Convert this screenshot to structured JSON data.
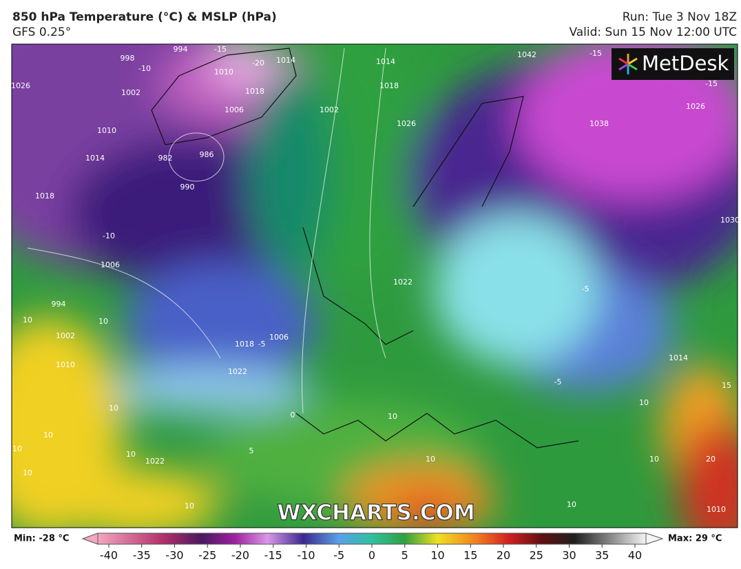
{
  "header": {
    "title": "850 hPa Temperature (°C) & MSLP (hPa)",
    "subtitle": "GFS 0.25°",
    "run": "Run: Tue 3 Nov 18Z",
    "valid": "Valid: Sun 15 Nov 12:00 UTC"
  },
  "logo": "MetDesk",
  "watermark": "WXCHARTS.COM",
  "map": {
    "contour_labels": [
      "994",
      "998",
      "1002",
      "1010",
      "1014",
      "1018",
      "1026",
      "982",
      "986",
      "990",
      "1010",
      "1018",
      "1014",
      "1006",
      "1002",
      "1014",
      "1018",
      "1026",
      "1022",
      "1042",
      "1038",
      "1026",
      "1030",
      "1006",
      "994",
      "1002",
      "1010",
      "1018",
      "1022",
      "1006",
      "1014",
      "1010",
      "1022",
      "-15",
      "-20",
      "-10",
      "-15",
      "-15",
      "-10",
      "-5",
      "-5",
      "-5",
      "0",
      "5",
      "10",
      "10",
      "10",
      "10",
      "10",
      "10",
      "10",
      "10",
      "10",
      "10",
      "10",
      "10",
      "10",
      "15",
      "20"
    ]
  },
  "colorbar": {
    "min_label": "Min: -28 °C",
    "max_label": "Max: 29 °C",
    "range": [
      -40,
      40
    ],
    "ticks": [
      -40,
      -35,
      -30,
      -25,
      -20,
      -15,
      -10,
      -5,
      0,
      5,
      10,
      15,
      20,
      25,
      30,
      35,
      40
    ]
  }
}
